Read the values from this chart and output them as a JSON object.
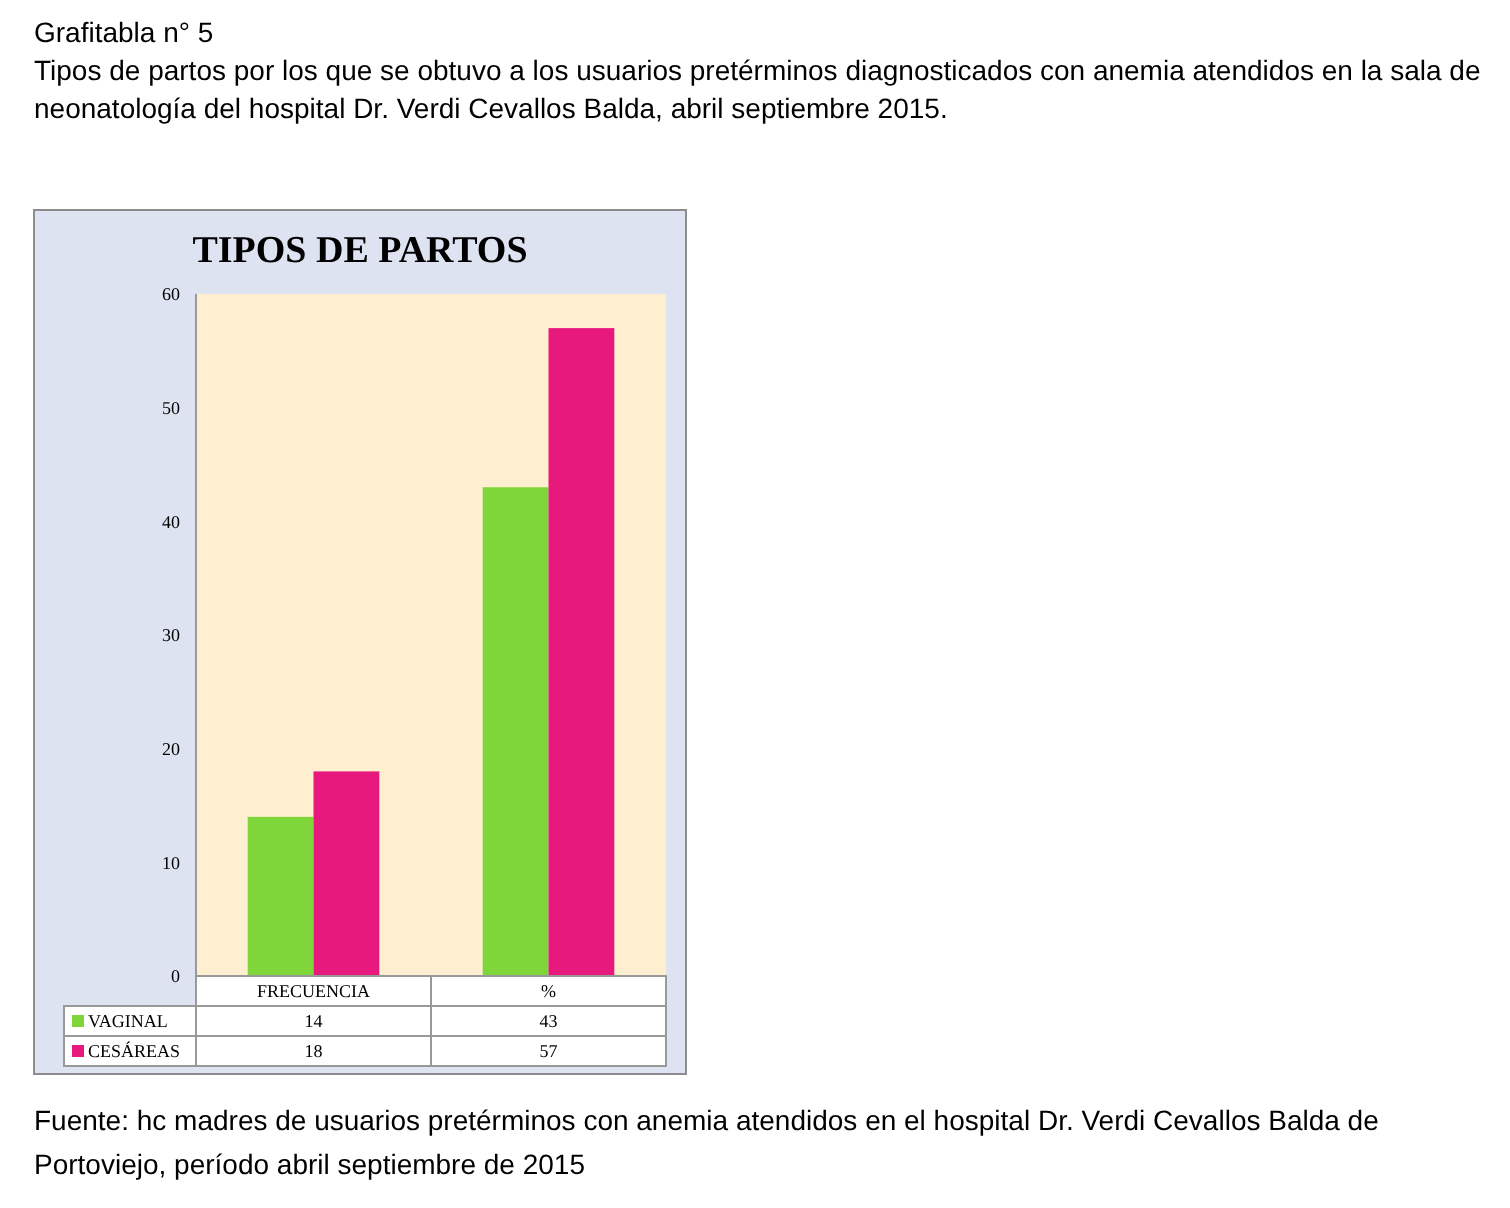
{
  "chart_data": {
    "type": "bar",
    "title": "TIPOS DE PARTOS",
    "categories": [
      "FRECUENCIA",
      "%"
    ],
    "series": [
      {
        "name": "VAGINAL",
        "color": "#7ed63a",
        "values": [
          14,
          43
        ]
      },
      {
        "name": "CESÁREAS",
        "color": "#e8197c",
        "values": [
          18,
          57
        ]
      }
    ],
    "ylim": [
      0,
      60
    ],
    "yticks": [
      0,
      10,
      20,
      30,
      40,
      50,
      60
    ],
    "grid": false,
    "legend": "bottom",
    "data_labels": true,
    "annotations": [
      "Grafitabla  n° 5",
      "Tipos de partos por los que se obtuvo a los usuarios pretérminos diagnosticados con anemia atendidos en la sala de neonatología del hospital Dr. Verdi Cevallos Balda, abril septiembre  2015.",
      "Fuente: hc madres de usuarios pretérminos con anemia atendidos en el hospital Dr. Verdi  Cevallos Balda de Portoviejo, período abril  septiembre de 2015"
    ]
  }
}
